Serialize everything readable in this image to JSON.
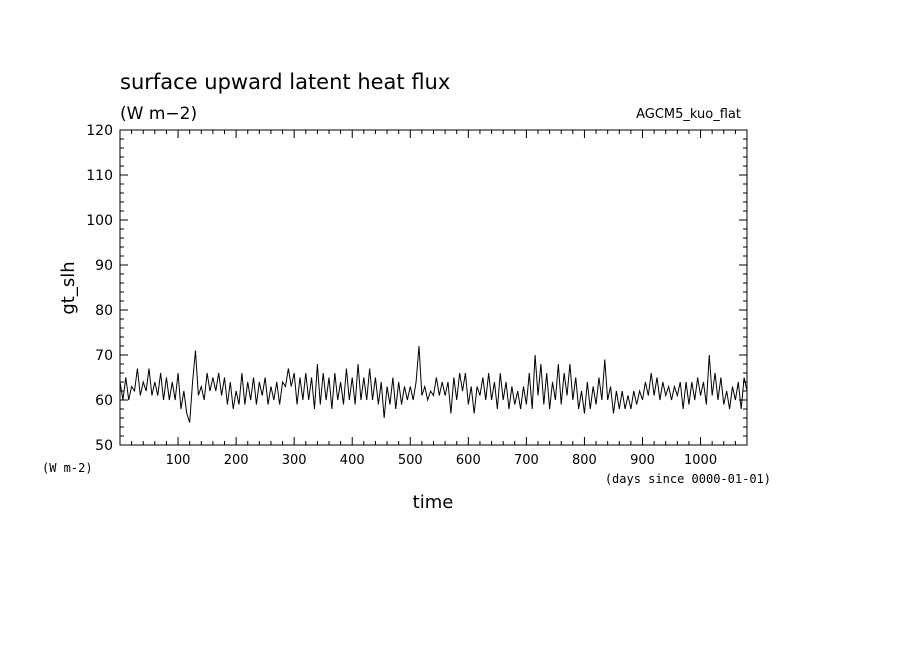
{
  "chart_data": {
    "type": "line",
    "title": "surface upward latent heat flux",
    "units": "(W m−2)",
    "run_label": "AGCM5_kuo_flat",
    "ylabel": "gt_slh",
    "xlabel": "time",
    "xunits": "(days since 0000-01-01)",
    "yunits_small": "(W m-2)",
    "xlim": [
      0,
      1080
    ],
    "ylim": [
      50,
      120
    ],
    "xticks": [
      "100",
      "200",
      "300",
      "400",
      "500",
      "600",
      "700",
      "800",
      "900",
      "1000"
    ],
    "yticks": [
      "50",
      "60",
      "70",
      "80",
      "90",
      "100",
      "110",
      "120"
    ],
    "grid": false,
    "series": [
      {
        "values": [
          [
            0,
            64
          ],
          [
            5,
            60
          ],
          [
            10,
            65
          ],
          [
            15,
            60
          ],
          [
            20,
            63
          ],
          [
            25,
            62
          ],
          [
            30,
            67
          ],
          [
            35,
            61
          ],
          [
            40,
            64
          ],
          [
            45,
            62
          ],
          [
            50,
            67
          ],
          [
            55,
            61
          ],
          [
            60,
            64
          ],
          [
            65,
            61
          ],
          [
            70,
            66
          ],
          [
            75,
            60
          ],
          [
            80,
            65
          ],
          [
            85,
            60
          ],
          [
            90,
            64
          ],
          [
            95,
            60
          ],
          [
            100,
            66
          ],
          [
            105,
            58
          ],
          [
            110,
            62
          ],
          [
            115,
            57
          ],
          [
            120,
            55
          ],
          [
            125,
            64
          ],
          [
            130,
            71
          ],
          [
            135,
            61
          ],
          [
            140,
            63
          ],
          [
            145,
            60
          ],
          [
            150,
            66
          ],
          [
            155,
            62
          ],
          [
            160,
            65
          ],
          [
            165,
            62
          ],
          [
            170,
            66
          ],
          [
            175,
            61
          ],
          [
            180,
            65
          ],
          [
            185,
            59
          ],
          [
            190,
            64
          ],
          [
            195,
            58
          ],
          [
            200,
            62
          ],
          [
            205,
            59
          ],
          [
            210,
            66
          ],
          [
            215,
            59
          ],
          [
            220,
            64
          ],
          [
            225,
            60
          ],
          [
            230,
            65
          ],
          [
            235,
            59
          ],
          [
            240,
            64
          ],
          [
            245,
            61
          ],
          [
            250,
            65
          ],
          [
            255,
            59
          ],
          [
            260,
            63
          ],
          [
            265,
            60
          ],
          [
            270,
            64
          ],
          [
            275,
            59
          ],
          [
            280,
            64
          ],
          [
            285,
            63
          ],
          [
            290,
            67
          ],
          [
            295,
            63
          ],
          [
            300,
            66
          ],
          [
            305,
            59
          ],
          [
            310,
            65
          ],
          [
            315,
            60
          ],
          [
            320,
            66
          ],
          [
            325,
            60
          ],
          [
            330,
            65
          ],
          [
            335,
            58
          ],
          [
            340,
            68
          ],
          [
            345,
            59
          ],
          [
            350,
            66
          ],
          [
            355,
            60
          ],
          [
            360,
            65
          ],
          [
            365,
            58
          ],
          [
            370,
            66
          ],
          [
            375,
            60
          ],
          [
            380,
            64
          ],
          [
            385,
            59
          ],
          [
            390,
            67
          ],
          [
            395,
            60
          ],
          [
            400,
            65
          ],
          [
            405,
            59
          ],
          [
            410,
            68
          ],
          [
            415,
            60
          ],
          [
            420,
            65
          ],
          [
            425,
            60
          ],
          [
            430,
            67
          ],
          [
            435,
            60
          ],
          [
            440,
            65
          ],
          [
            445,
            59
          ],
          [
            450,
            64
          ],
          [
            455,
            56
          ],
          [
            460,
            63
          ],
          [
            465,
            59
          ],
          [
            470,
            65
          ],
          [
            475,
            58
          ],
          [
            480,
            64
          ],
          [
            485,
            59
          ],
          [
            490,
            63
          ],
          [
            495,
            60
          ],
          [
            500,
            63
          ],
          [
            505,
            60
          ],
          [
            510,
            64
          ],
          [
            515,
            72
          ],
          [
            520,
            61
          ],
          [
            525,
            63
          ],
          [
            530,
            60
          ],
          [
            535,
            62
          ],
          [
            540,
            61
          ],
          [
            545,
            65
          ],
          [
            550,
            61
          ],
          [
            555,
            64
          ],
          [
            560,
            61
          ],
          [
            565,
            64
          ],
          [
            570,
            57
          ],
          [
            575,
            65
          ],
          [
            580,
            60
          ],
          [
            585,
            66
          ],
          [
            590,
            62
          ],
          [
            595,
            66
          ],
          [
            600,
            59
          ],
          [
            605,
            63
          ],
          [
            610,
            57
          ],
          [
            615,
            63
          ],
          [
            620,
            61
          ],
          [
            625,
            65
          ],
          [
            630,
            60
          ],
          [
            635,
            66
          ],
          [
            640,
            60
          ],
          [
            645,
            64
          ],
          [
            650,
            58
          ],
          [
            655,
            66
          ],
          [
            660,
            60
          ],
          [
            665,
            64
          ],
          [
            670,
            58
          ],
          [
            675,
            63
          ],
          [
            680,
            59
          ],
          [
            685,
            62
          ],
          [
            690,
            58
          ],
          [
            695,
            63
          ],
          [
            700,
            59
          ],
          [
            705,
            66
          ],
          [
            710,
            58
          ],
          [
            715,
            70
          ],
          [
            720,
            61
          ],
          [
            725,
            68
          ],
          [
            730,
            59
          ],
          [
            735,
            66
          ],
          [
            740,
            58
          ],
          [
            745,
            64
          ],
          [
            750,
            60
          ],
          [
            755,
            68
          ],
          [
            760,
            59
          ],
          [
            765,
            66
          ],
          [
            770,
            61
          ],
          [
            775,
            68
          ],
          [
            780,
            60
          ],
          [
            785,
            65
          ],
          [
            790,
            58
          ],
          [
            795,
            62
          ],
          [
            800,
            57
          ],
          [
            805,
            64
          ],
          [
            810,
            58
          ],
          [
            815,
            63
          ],
          [
            820,
            59
          ],
          [
            825,
            65
          ],
          [
            830,
            60
          ],
          [
            835,
            69
          ],
          [
            840,
            60
          ],
          [
            845,
            63
          ],
          [
            850,
            57
          ],
          [
            855,
            62
          ],
          [
            860,
            58
          ],
          [
            865,
            62
          ],
          [
            870,
            58
          ],
          [
            875,
            61
          ],
          [
            880,
            58
          ],
          [
            885,
            62
          ],
          [
            890,
            59
          ],
          [
            895,
            62
          ],
          [
            900,
            60
          ],
          [
            905,
            64
          ],
          [
            910,
            61
          ],
          [
            915,
            66
          ],
          [
            920,
            61
          ],
          [
            925,
            65
          ],
          [
            930,
            60
          ],
          [
            935,
            64
          ],
          [
            940,
            61
          ],
          [
            945,
            63
          ],
          [
            950,
            60
          ],
          [
            955,
            63
          ],
          [
            960,
            61
          ],
          [
            965,
            64
          ],
          [
            970,
            58
          ],
          [
            975,
            64
          ],
          [
            980,
            59
          ],
          [
            985,
            64
          ],
          [
            990,
            60
          ],
          [
            995,
            65
          ],
          [
            1000,
            61
          ],
          [
            1005,
            64
          ],
          [
            1010,
            59
          ],
          [
            1015,
            70
          ],
          [
            1020,
            61
          ],
          [
            1025,
            66
          ],
          [
            1030,
            60
          ],
          [
            1035,
            65
          ],
          [
            1040,
            59
          ],
          [
            1045,
            62
          ],
          [
            1050,
            58
          ],
          [
            1055,
            63
          ],
          [
            1060,
            60
          ],
          [
            1065,
            64
          ],
          [
            1070,
            58
          ],
          [
            1075,
            65
          ],
          [
            1080,
            62
          ]
        ]
      }
    ]
  }
}
